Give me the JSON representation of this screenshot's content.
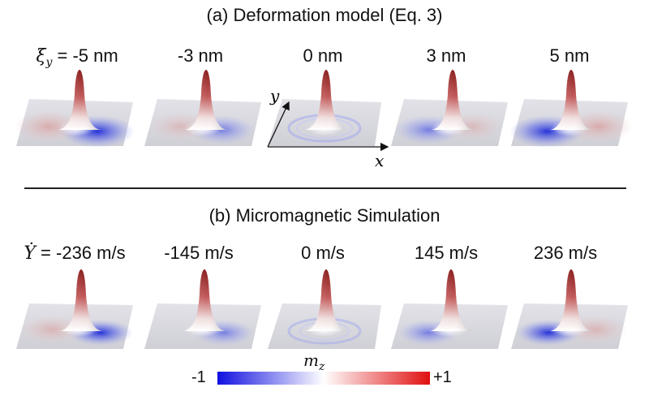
{
  "panel_a": {
    "title": "(a) Deformation model (Eq. 3)",
    "param_symbol": "ξ",
    "param_subscript": "y",
    "labels": [
      "-5 nm",
      "-3 nm",
      "0 nm",
      "3 nm",
      "5 nm"
    ],
    "axes": {
      "x": "x",
      "y": "y"
    }
  },
  "panel_b": {
    "title": "(b) Micromagnetic Simulation",
    "param_symbol": "Ẏ",
    "labels": [
      "-236 m/s",
      "-145 m/s",
      "0 m/s",
      "145 m/s",
      "236 m/s"
    ]
  },
  "colorbar": {
    "label": "m",
    "label_subscript": "z",
    "min_label": "-1",
    "max_label": "+1",
    "colors": {
      "negative": "#1010e0",
      "zero": "#ffffff",
      "positive": "#e01010"
    }
  }
}
